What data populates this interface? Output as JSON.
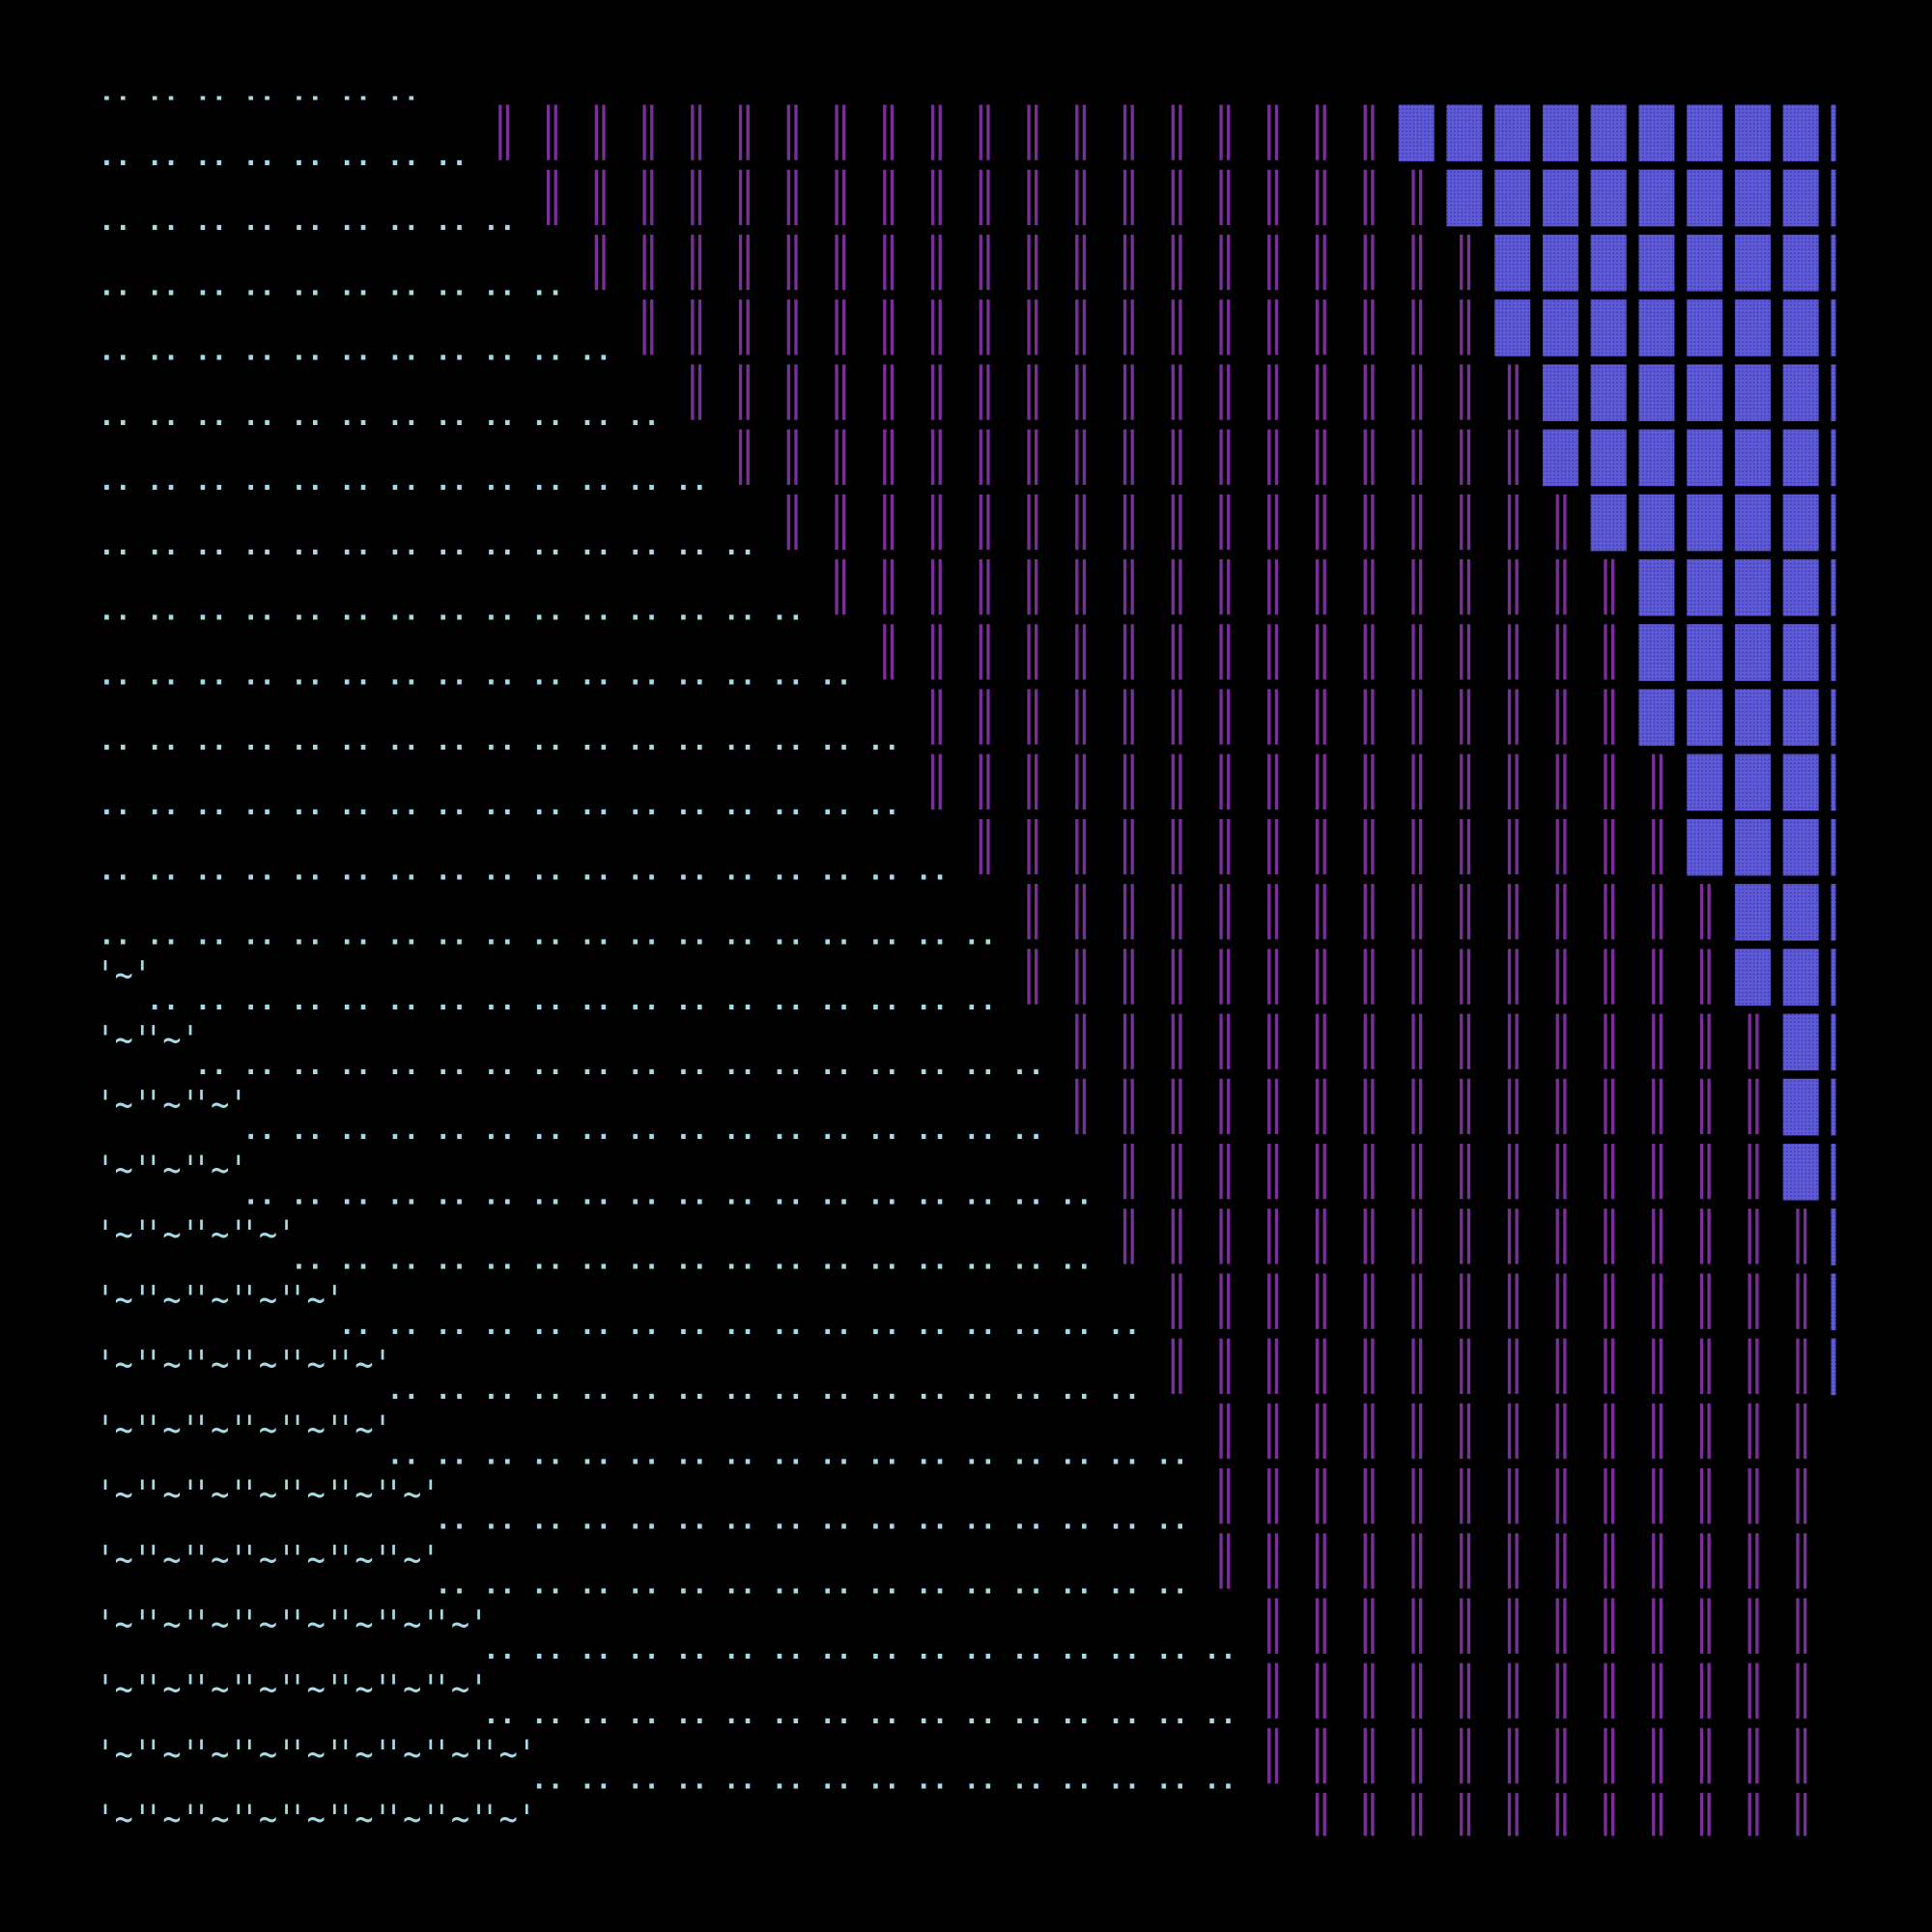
{
  "glyphs": {
    "dots": "..",
    "wave": "'~'"
  }
}
